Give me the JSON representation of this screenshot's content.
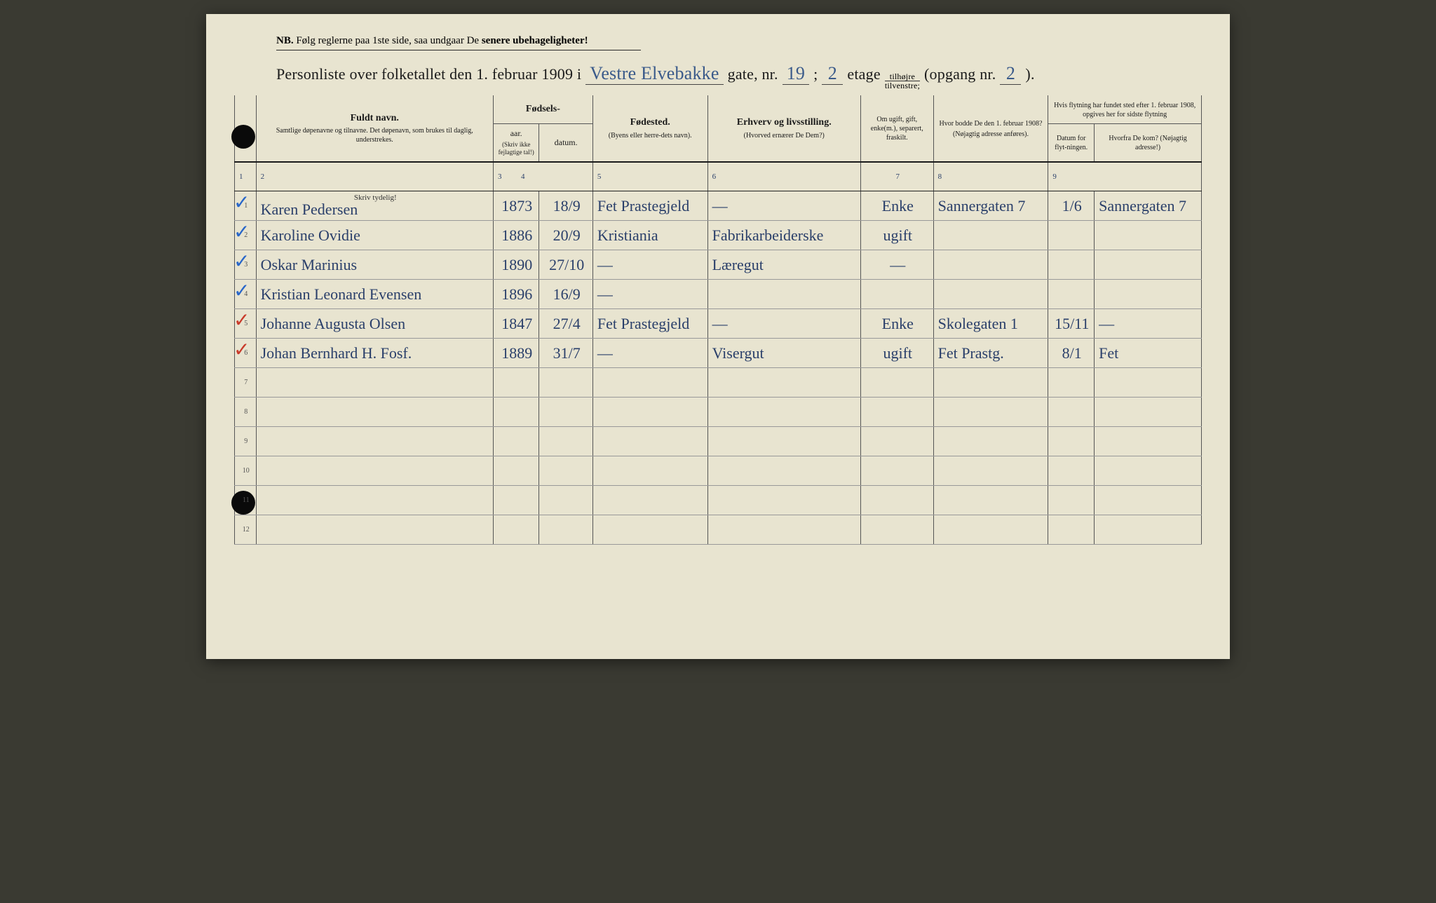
{
  "nb": {
    "prefix": "NB.",
    "text": "Følg reglerne paa 1ste side, saa undgaar De",
    "bold": "senere ubehageligheter!"
  },
  "title": {
    "p1": "Personliste over folketallet den 1. februar 1909 i",
    "street": "Vestre Elvebakke",
    "p2": "gate, nr.",
    "nr": "19",
    "p3": ";",
    "etage": "2",
    "p4": "etage",
    "frac_top": "tilhøjre",
    "frac_bot": "tilvenstre;",
    "p5": "(opgang nr.",
    "opgang": "2",
    "p6": ")."
  },
  "colnums": [
    "1",
    "2",
    "3",
    "4",
    "5",
    "6",
    "7",
    "8",
    "9"
  ],
  "headers": {
    "name_main": "Fuldt navn.",
    "name_sub": "Samtlige døpenavne og tilnavne. Det døpenavn, som brukes til daglig, understrekes.",
    "fod_group": "Fødsels-",
    "aar": "aar.",
    "datum": "datum.",
    "fod_sub": "(Skriv ikke fejlagtige tal!)",
    "sted_main": "Fødested.",
    "sted_sub": "(Byens eller herre-dets navn).",
    "erh_main": "Erhverv og livsstilling.",
    "erh_sub": "(Hvorved ernærer De Dem?)",
    "ugift": "Om ugift, gift, enke(m.), separert, fraskilt.",
    "f1908_main": "Hvor bodde De den 1. februar 1908?",
    "f1908_sub": "(Nøjagtig adresse anføres).",
    "flyt_group": "Hvis flytning har fundet sted efter 1. februar 1908, opgives her for sidste flytning",
    "flyt_dat": "Datum for flyt-ningen.",
    "flyt_hvor": "Hvorfra De kom? (Nøjagtig adresse!)"
  },
  "skriv_tydelig": "Skriv tydelig!",
  "rows": [
    {
      "n": "1",
      "chk": "blue",
      "name": "Karen Pedersen",
      "aar": "1873",
      "dat": "18/9",
      "sted": "Fet Prastegjeld",
      "erh": "—",
      "ugift": "Enke",
      "f1908": "Sannergaten 7",
      "flydat": "1/6",
      "hvor": "Sannergaten 7"
    },
    {
      "n": "2",
      "chk": "blue",
      "name": "Karoline Ovidie",
      "aar": "1886",
      "dat": "20/9",
      "sted": "Kristiania",
      "erh": "Fabrikarbeiderske",
      "ugift": "ugift",
      "f1908": "",
      "flydat": "",
      "hvor": ""
    },
    {
      "n": "3",
      "chk": "blue",
      "name": "Oskar Marinius",
      "aar": "1890",
      "dat": "27/10",
      "sted": "—",
      "erh": "Læregut",
      "ugift": "—",
      "f1908": "",
      "flydat": "",
      "hvor": ""
    },
    {
      "n": "4",
      "chk": "blue",
      "name": "Kristian Leonard Evensen",
      "aar": "1896",
      "dat": "16/9",
      "sted": "—",
      "erh": "",
      "ugift": "",
      "f1908": "",
      "flydat": "",
      "hvor": ""
    },
    {
      "n": "5",
      "chk": "red",
      "name": "Johanne Augusta Olsen",
      "aar": "1847",
      "dat": "27/4",
      "sted": "Fet Prastegjeld",
      "erh": "—",
      "ugift": "Enke",
      "f1908": "Skolegaten 1",
      "flydat": "15/11",
      "hvor": "—"
    },
    {
      "n": "6",
      "chk": "red",
      "name": "Johan Bernhard H. Fosf.",
      "aar": "1889",
      "dat": "31/7",
      "sted": "—",
      "erh": "Visergut",
      "ugift": "ugift",
      "f1908": "Fet Prastg.",
      "flydat": "8/1",
      "hvor": "Fet"
    },
    {
      "n": "7",
      "chk": "",
      "name": "",
      "aar": "",
      "dat": "",
      "sted": "",
      "erh": "",
      "ugift": "",
      "f1908": "",
      "flydat": "",
      "hvor": ""
    },
    {
      "n": "8",
      "chk": "",
      "name": "",
      "aar": "",
      "dat": "",
      "sted": "",
      "erh": "",
      "ugift": "",
      "f1908": "",
      "flydat": "",
      "hvor": ""
    },
    {
      "n": "9",
      "chk": "",
      "name": "",
      "aar": "",
      "dat": "",
      "sted": "",
      "erh": "",
      "ugift": "",
      "f1908": "",
      "flydat": "",
      "hvor": ""
    },
    {
      "n": "10",
      "chk": "",
      "name": "",
      "aar": "",
      "dat": "",
      "sted": "",
      "erh": "",
      "ugift": "",
      "f1908": "",
      "flydat": "",
      "hvor": ""
    },
    {
      "n": "11",
      "chk": "",
      "name": "",
      "aar": "",
      "dat": "",
      "sted": "",
      "erh": "",
      "ugift": "",
      "f1908": "",
      "flydat": "",
      "hvor": ""
    },
    {
      "n": "12",
      "chk": "",
      "name": "",
      "aar": "",
      "dat": "",
      "sted": "",
      "erh": "",
      "ugift": "",
      "f1908": "",
      "flydat": "",
      "hvor": ""
    }
  ],
  "colors": {
    "paper": "#e8e4d0",
    "ink_print": "#1a1a1a",
    "ink_hand": "#2a3f6a",
    "check_blue": "#2866c9",
    "check_red": "#c93a2a"
  }
}
